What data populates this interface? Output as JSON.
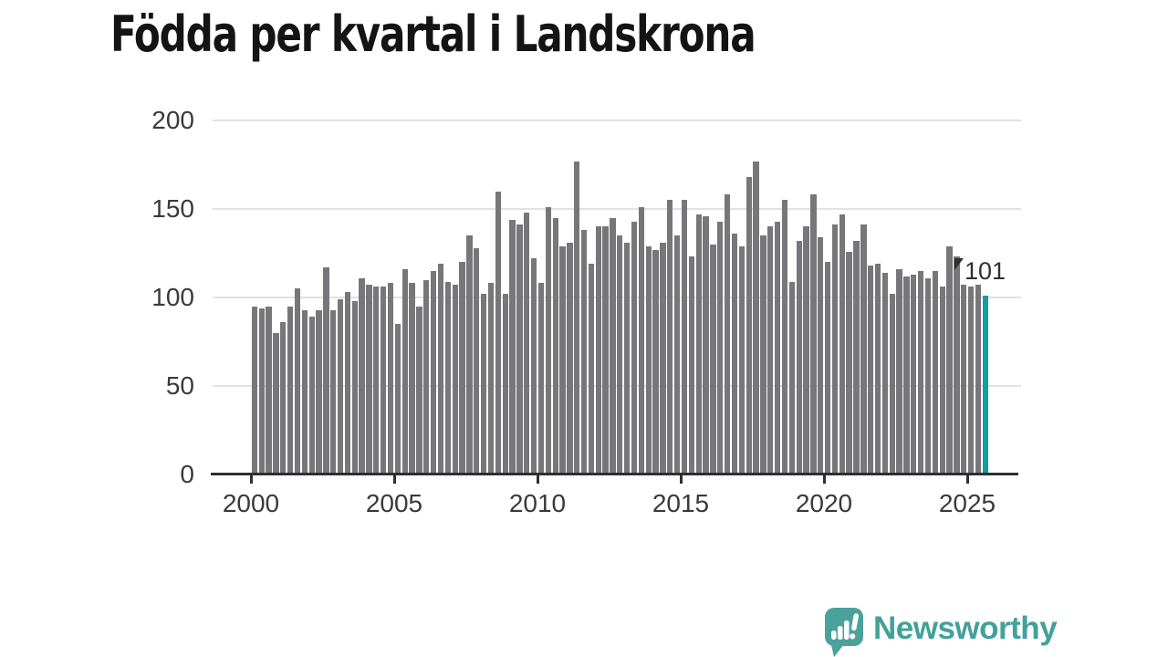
{
  "title": "Födda per kvartal i Landskrona",
  "chart_data": {
    "type": "bar",
    "title": "Födda per kvartal i Landskrona",
    "unit": "födda (births) per quarter",
    "x_start": "2000Q1",
    "x_end": "2025Q3",
    "frequency": "quarterly",
    "values": [
      95,
      94,
      95,
      80,
      86,
      95,
      105,
      93,
      89,
      93,
      117,
      93,
      99,
      103,
      98,
      111,
      107,
      106,
      106,
      108,
      85,
      116,
      108,
      95,
      110,
      115,
      119,
      109,
      107,
      120,
      135,
      128,
      102,
      108,
      160,
      102,
      144,
      141,
      148,
      122,
      108,
      151,
      145,
      129,
      131,
      177,
      138,
      119,
      140,
      140,
      145,
      135,
      131,
      143,
      151,
      129,
      127,
      131,
      155,
      135,
      155,
      123,
      147,
      146,
      130,
      143,
      158,
      136,
      129,
      168,
      177,
      135,
      140,
      143,
      155,
      109,
      132,
      140,
      158,
      134,
      120,
      141,
      147,
      126,
      132,
      141,
      118,
      119,
      114,
      102,
      116,
      112,
      113,
      115,
      111,
      115,
      106,
      129,
      123,
      107,
      106,
      107,
      101
    ],
    "yticks": [
      0,
      50,
      100,
      150,
      200
    ],
    "ylim": [
      0,
      200
    ],
    "xticks": [
      2000,
      2005,
      2010,
      2015,
      2020,
      2025
    ],
    "grid": "horizontal",
    "legend": "none",
    "bar_color": "#77777b",
    "highlight": {
      "index": 102,
      "quarter": "2025Q3",
      "value": 101,
      "color": "#12a19a"
    }
  },
  "annotation": {
    "label": "101"
  },
  "footer": {
    "brand": "Newsworthy",
    "brand_color": "#43a09a",
    "icon": "newsworthy-speech-bubble-chart-icon"
  }
}
